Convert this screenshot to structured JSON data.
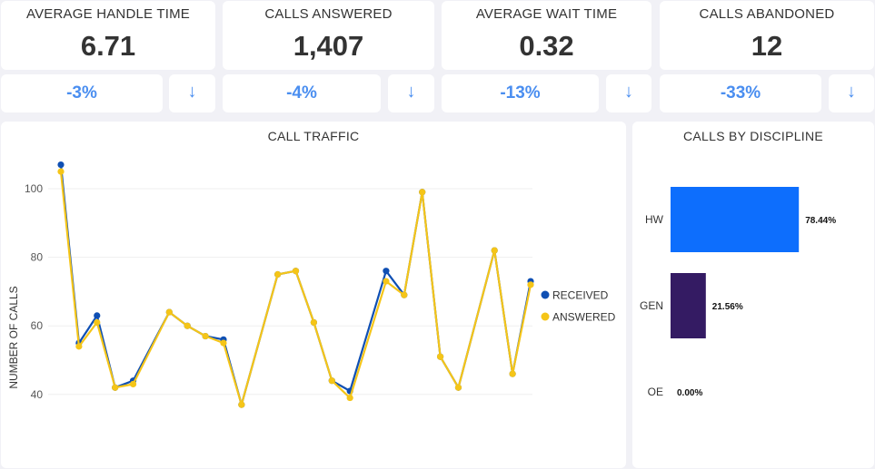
{
  "kpis": [
    {
      "title": "AVERAGE HANDLE TIME",
      "value": "6.71",
      "change": "-3%",
      "trend_icon": "arrow-down-icon",
      "trend_symbol": "↓"
    },
    {
      "title": "CALLS ANSWERED",
      "value": "1,407",
      "change": "-4%",
      "trend_icon": "arrow-down-icon",
      "trend_symbol": "↓"
    },
    {
      "title": "AVERAGE WAIT TIME",
      "value": "0.32",
      "change": "-13%",
      "trend_icon": "arrow-down-icon",
      "trend_symbol": "↓"
    },
    {
      "title": "CALLS ABANDONED",
      "value": "12",
      "change": "-33%",
      "trend_icon": "arrow-down-icon",
      "trend_symbol": "↓"
    }
  ],
  "colors": {
    "received": "#0f4fb3",
    "answered": "#f5c518",
    "hw": "#0d6efd",
    "gen": "#341b63",
    "accent": "#4a8ef0"
  },
  "chart_data": [
    {
      "type": "line",
      "title": "CALL TRAFFIC",
      "ylabel": "NUMBER OF CALLS",
      "xlabel": "",
      "ylim": [
        33,
        110
      ],
      "yticks": [
        40,
        60,
        80,
        100
      ],
      "grid": true,
      "legend_position": "right",
      "series": [
        {
          "name": "RECEIVED",
          "values": [
            107,
            55,
            63,
            42,
            44,
            null,
            64,
            60,
            57,
            56,
            37,
            null,
            75,
            76,
            61,
            44,
            41,
            null,
            76,
            69,
            99,
            51,
            42,
            null,
            82,
            46,
            73
          ]
        },
        {
          "name": "ANSWERED",
          "values": [
            105,
            54,
            61,
            42,
            43,
            null,
            64,
            60,
            57,
            55,
            37,
            null,
            75,
            76,
            61,
            44,
            39,
            null,
            73,
            69,
            99,
            51,
            42,
            null,
            82,
            46,
            72
          ]
        }
      ]
    },
    {
      "type": "bar",
      "orientation": "horizontal",
      "title": "CALLS BY DISCIPLINE",
      "categories": [
        "HW",
        "GEN",
        "OE"
      ],
      "values": [
        78.44,
        21.56,
        0.0
      ],
      "value_labels": [
        "78.44%",
        "21.56%",
        "0.00%"
      ]
    }
  ]
}
